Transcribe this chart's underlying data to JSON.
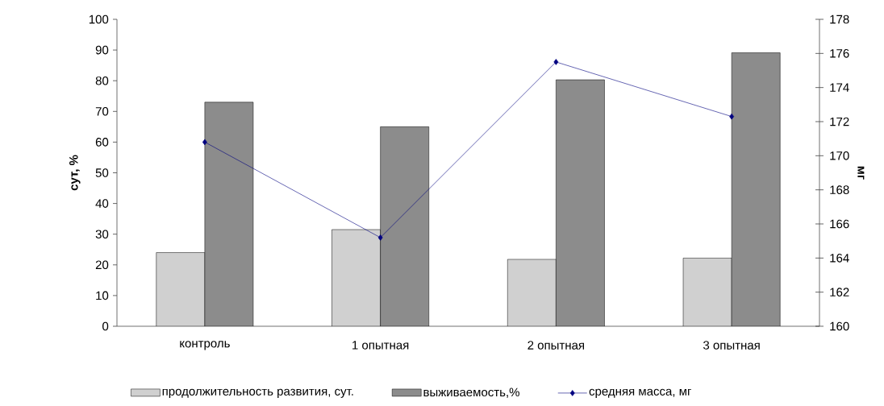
{
  "chart_data": {
    "type": "bar",
    "categories": [
      "контроль",
      "1 опытная",
      "2 опытная",
      "3 опытная"
    ],
    "ylabel": "сут, %",
    "y2label": "мг",
    "ylim": [
      0,
      100
    ],
    "yticks": [
      0,
      10,
      20,
      30,
      40,
      50,
      60,
      70,
      80,
      90,
      100
    ],
    "y2lim": [
      160,
      178
    ],
    "y2ticks": [
      160,
      162,
      164,
      166,
      168,
      170,
      172,
      174,
      176,
      178
    ],
    "legend": "bottom",
    "marker": "diamond",
    "series": [
      {
        "name": "продолжительность развития, сут.",
        "color": "#d0d0d0",
        "values": [
          24,
          31.5,
          21.8,
          22.2
        ]
      },
      {
        "name": "выживаемость,%",
        "color": "#8c8c8c",
        "values": [
          73,
          65,
          80.3,
          89.1
        ]
      },
      {
        "type": "line",
        "axis": "y2",
        "name": "средняя масса, мг",
        "color": "#000080",
        "values": [
          170.8,
          165.2,
          175.5,
          172.3
        ]
      }
    ]
  }
}
